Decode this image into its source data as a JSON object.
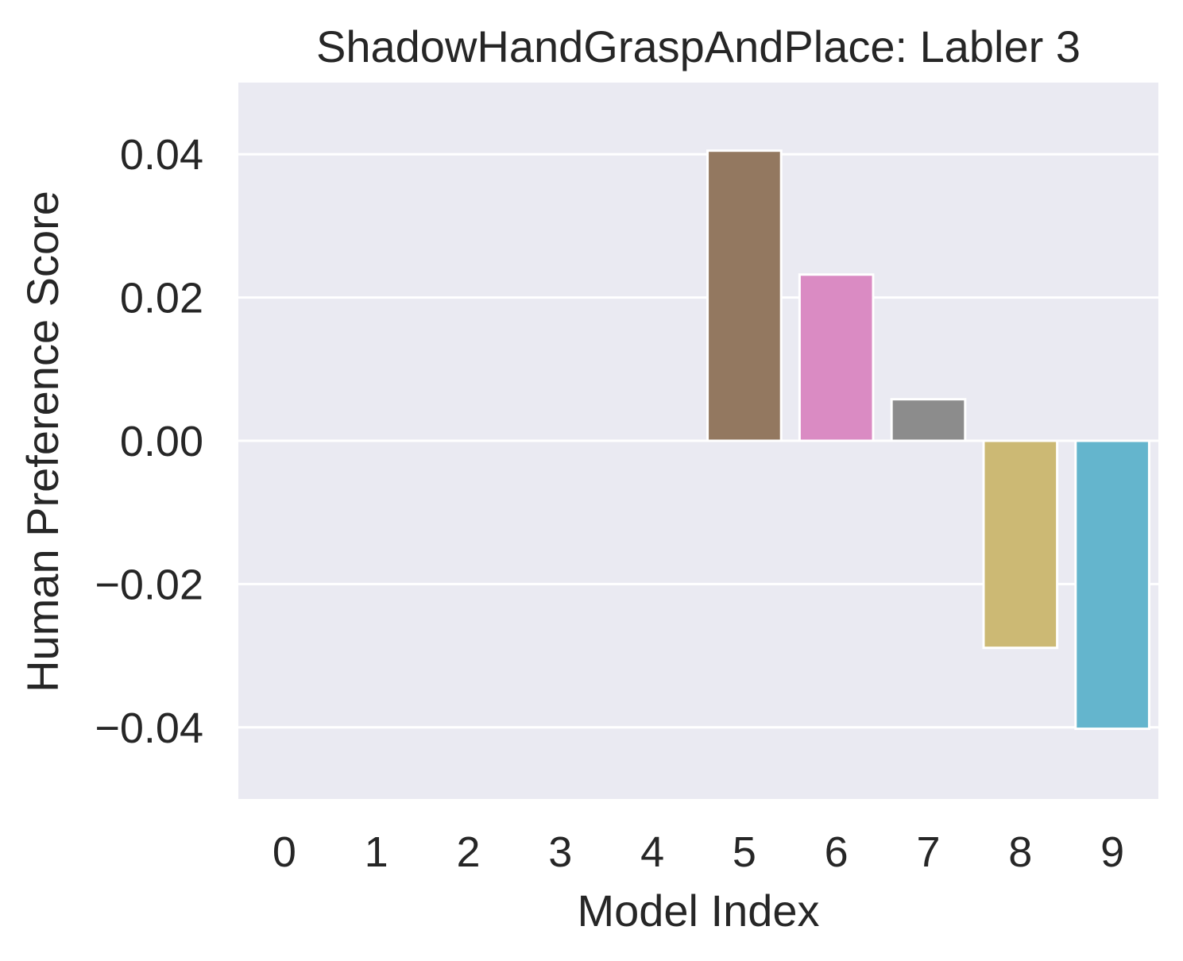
{
  "chart_data": {
    "type": "bar",
    "title": "ShadowHandGraspAndPlace: Labler 3",
    "xlabel": "Model Index",
    "ylabel": "Human Preference Score",
    "categories": [
      "0",
      "1",
      "2",
      "3",
      "4",
      "5",
      "6",
      "7",
      "8",
      "9"
    ],
    "values": [
      0,
      0,
      0,
      0,
      0,
      0.0405,
      0.0232,
      0.0058,
      -0.0289,
      -0.0402
    ],
    "colors": [
      "#4c72b0",
      "#dd8452",
      "#55a868",
      "#c44e52",
      "#8172b3",
      "#937860",
      "#da8bc3",
      "#8c8c8c",
      "#ccb974",
      "#64b5cd"
    ],
    "ylim": [
      -0.05,
      0.05
    ],
    "yticks": [
      -0.04,
      -0.02,
      0.0,
      0.02,
      0.04
    ],
    "ytick_labels": [
      "−0.04",
      "−0.02",
      "0.00",
      "0.02",
      "0.04"
    ],
    "grid": true,
    "background_color": "#eaeaf2",
    "grid_color": "#ffffff"
  }
}
